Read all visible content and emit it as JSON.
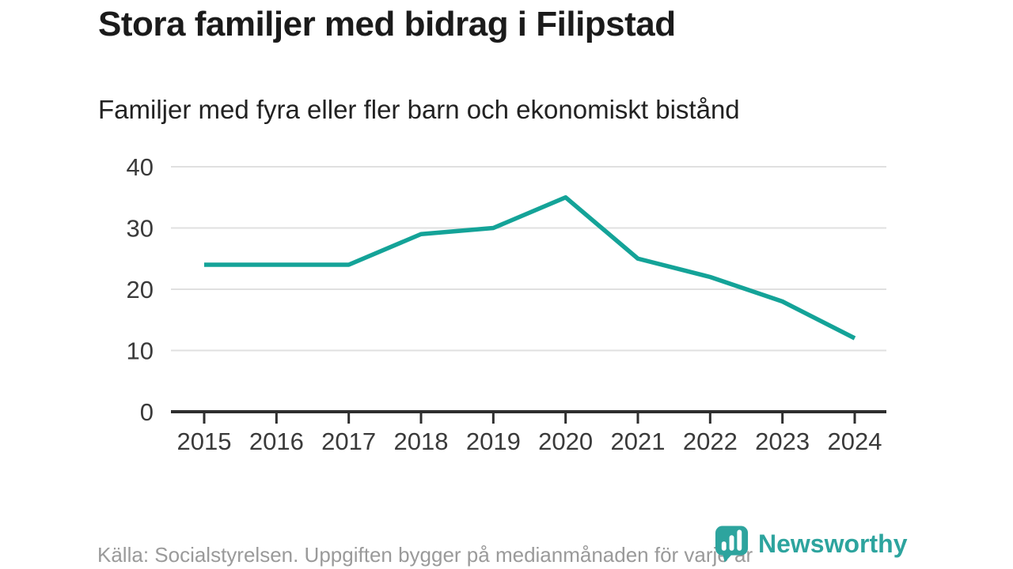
{
  "header": {
    "title": "Stora familjer med bidrag i Filipstad",
    "subtitle": "Familjer med fyra eller fler barn och ekonomiskt bistånd"
  },
  "chart_data": {
    "type": "line",
    "x": [
      2015,
      2016,
      2017,
      2018,
      2019,
      2020,
      2021,
      2022,
      2023,
      2024
    ],
    "values": [
      24,
      24,
      24,
      29,
      30,
      35,
      25,
      22,
      18,
      12
    ],
    "title": "Stora familjer med bidrag i Filipstad",
    "subtitle": "Familjer med fyra eller fler barn och ekonomiskt bistånd",
    "xlabel": "",
    "ylabel": "",
    "ylim": [
      0,
      40
    ],
    "yticks": [
      0,
      10,
      20,
      30,
      40
    ],
    "grid": true,
    "legend": "none",
    "line_color": "#14A398"
  },
  "footer": {
    "source": "Källa: Socialstyrelsen. Uppgiften bygger på medianmånaden för varje år",
    "logo_text": "Newsworthy"
  },
  "colors": {
    "accent": "#14A398",
    "logo": "#2DA49E",
    "title": "#1b1b1b",
    "grid": "#e0e0e0",
    "axis": "#2e2e2e",
    "source_text": "#9a9a9a"
  }
}
